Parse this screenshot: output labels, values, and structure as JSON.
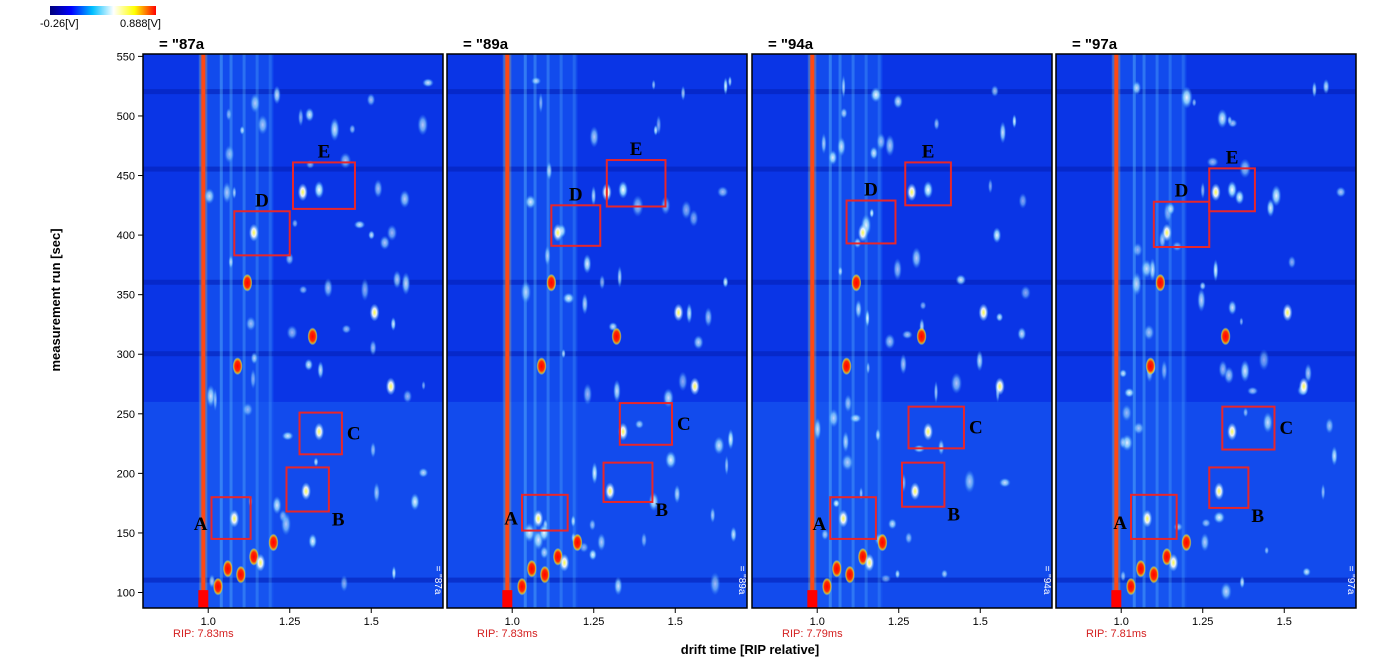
{
  "colorbar": {
    "min_label": "-0.26[V]",
    "max_label": "0.888[V]",
    "colors": [
      "#00007a",
      "#0000ff",
      "#00bfff",
      "#ffffff",
      "#ffff00",
      "#ff0000"
    ]
  },
  "axes": {
    "ylabel": "measurement run [sec]",
    "xlabel": "drift time [RIP relative]"
  },
  "chart_data": [
    {
      "type": "heatmap",
      "title": "= \"87a",
      "side_label": "= \"87a",
      "rip_label": "RIP: 7.83ms",
      "xlim": [
        0.8,
        1.72
      ],
      "ylim": [
        87,
        552
      ],
      "xticks": [
        "1.0",
        "1.25",
        "1.5"
      ],
      "yticks": [
        "100",
        "150",
        "200",
        "250",
        "300",
        "350",
        "400",
        "450",
        "500",
        "550"
      ],
      "boxes": [
        {
          "label": "A",
          "x": [
            1.01,
            1.13
          ],
          "y": [
            145,
            180
          ],
          "label_side": "left"
        },
        {
          "label": "B",
          "x": [
            1.24,
            1.37
          ],
          "y": [
            168,
            205
          ],
          "label_side": "bottom-right"
        },
        {
          "label": "C",
          "x": [
            1.28,
            1.41
          ],
          "y": [
            216,
            251
          ],
          "label_side": "right"
        },
        {
          "label": "D",
          "x": [
            1.08,
            1.25
          ],
          "y": [
            383,
            420
          ],
          "label_side": "top"
        },
        {
          "label": "E",
          "x": [
            1.26,
            1.45
          ],
          "y": [
            422,
            461
          ],
          "label_side": "top"
        }
      ]
    },
    {
      "type": "heatmap",
      "title": "= \"89a",
      "side_label": "= \"89a",
      "rip_label": "RIP: 7.83ms",
      "xlim": [
        0.8,
        1.72
      ],
      "ylim": [
        87,
        552
      ],
      "xticks": [
        "1.0",
        "1.25",
        "1.5"
      ],
      "yticks": [
        "100",
        "150",
        "200",
        "250",
        "300",
        "350",
        "400",
        "450",
        "500",
        "550"
      ],
      "boxes": [
        {
          "label": "A",
          "x": [
            1.03,
            1.17
          ],
          "y": [
            152,
            182
          ],
          "label_side": "left"
        },
        {
          "label": "B",
          "x": [
            1.28,
            1.43
          ],
          "y": [
            176,
            209
          ],
          "label_side": "bottom-right"
        },
        {
          "label": "C",
          "x": [
            1.33,
            1.49
          ],
          "y": [
            224,
            259
          ],
          "label_side": "right"
        },
        {
          "label": "D",
          "x": [
            1.12,
            1.27
          ],
          "y": [
            391,
            425
          ],
          "label_side": "top"
        },
        {
          "label": "E",
          "x": [
            1.29,
            1.47
          ],
          "y": [
            424,
            463
          ],
          "label_side": "top"
        }
      ]
    },
    {
      "type": "heatmap",
      "title": "= \"94a",
      "side_label": "= \"94a",
      "rip_label": "RIP: 7.79ms",
      "xlim": [
        0.8,
        1.72
      ],
      "ylim": [
        87,
        552
      ],
      "xticks": [
        "1.0",
        "1.25",
        "1.5"
      ],
      "yticks": [
        "100",
        "150",
        "200",
        "250",
        "300",
        "350",
        "400",
        "450",
        "500",
        "550"
      ],
      "boxes": [
        {
          "label": "A",
          "x": [
            1.04,
            1.18
          ],
          "y": [
            145,
            180
          ],
          "label_side": "left"
        },
        {
          "label": "B",
          "x": [
            1.26,
            1.39
          ],
          "y": [
            172,
            209
          ],
          "label_side": "bottom-right"
        },
        {
          "label": "C",
          "x": [
            1.28,
            1.45
          ],
          "y": [
            221,
            256
          ],
          "label_side": "right"
        },
        {
          "label": "D",
          "x": [
            1.09,
            1.24
          ],
          "y": [
            393,
            429
          ],
          "label_side": "top"
        },
        {
          "label": "E",
          "x": [
            1.27,
            1.41
          ],
          "y": [
            425,
            461
          ],
          "label_side": "top"
        }
      ]
    },
    {
      "type": "heatmap",
      "title": "= \"97a",
      "side_label": "= \"97a",
      "rip_label": "RIP: 7.81ms",
      "xlim": [
        0.8,
        1.72
      ],
      "ylim": [
        87,
        552
      ],
      "xticks": [
        "1.0",
        "1.25",
        "1.5"
      ],
      "yticks": [
        "100",
        "150",
        "200",
        "250",
        "300",
        "350",
        "400",
        "450",
        "500",
        "550"
      ],
      "boxes": [
        {
          "label": "A",
          "x": [
            1.03,
            1.17
          ],
          "y": [
            145,
            182
          ],
          "label_side": "left"
        },
        {
          "label": "B",
          "x": [
            1.27,
            1.39
          ],
          "y": [
            171,
            205
          ],
          "label_side": "bottom-right"
        },
        {
          "label": "C",
          "x": [
            1.31,
            1.47
          ],
          "y": [
            220,
            256
          ],
          "label_side": "right"
        },
        {
          "label": "D",
          "x": [
            1.1,
            1.27
          ],
          "y": [
            390,
            428
          ],
          "label_side": "top"
        },
        {
          "label": "E",
          "x": [
            1.27,
            1.41
          ],
          "y": [
            420,
            456
          ],
          "label_side": "top"
        }
      ]
    }
  ]
}
